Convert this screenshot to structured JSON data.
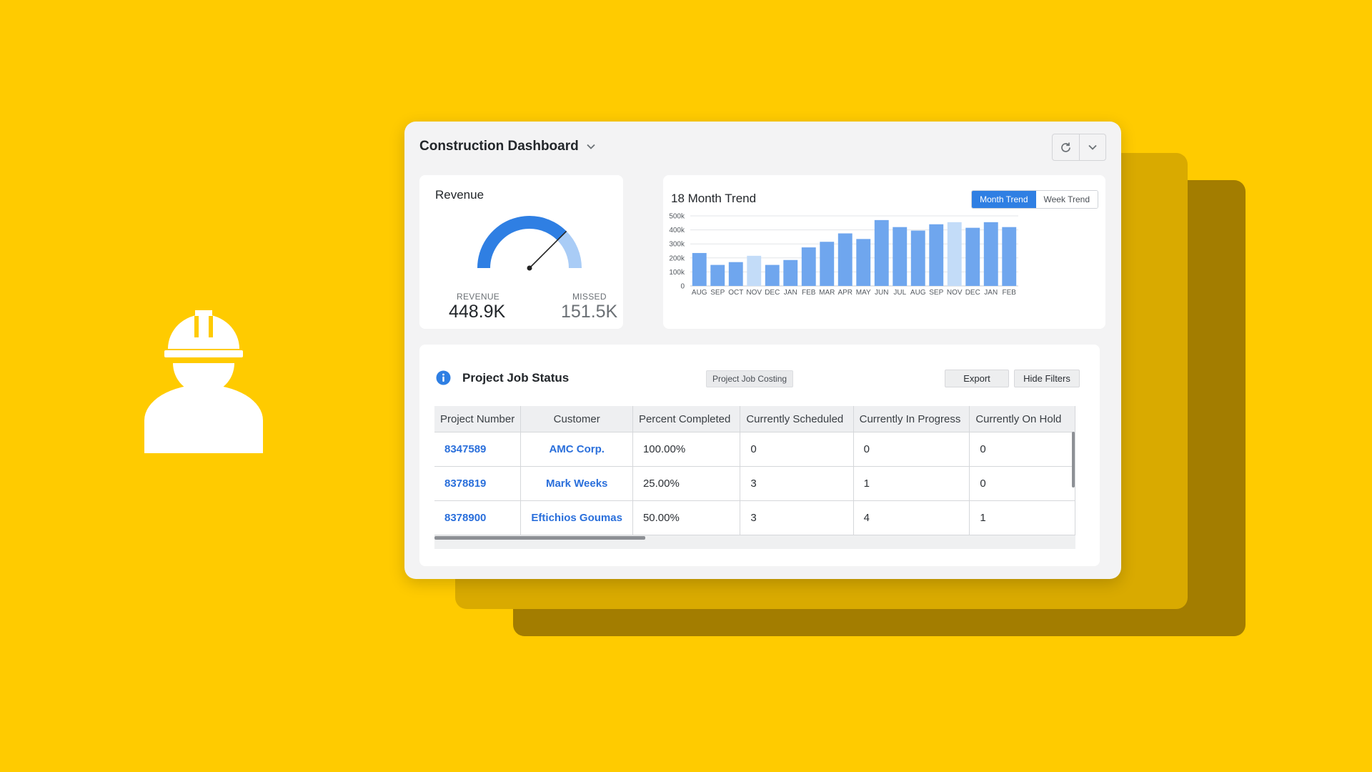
{
  "colors": {
    "background": "#FFCB00",
    "accent": "#2F7FE3",
    "bar": "#6FA6EE",
    "bar_highlight": "#C3DCF8",
    "link": "#2A6FDB"
  },
  "illustration": {
    "icon": "construction-worker-icon"
  },
  "window": {
    "title": "Construction Dashboard",
    "title_icon": "chevron-down-icon",
    "toolbar": {
      "refresh_icon": "refresh-icon",
      "menu_icon": "chevron-down-icon"
    }
  },
  "revenue": {
    "title": "Revenue",
    "gauge_fraction": 0.75,
    "revenue_label": "REVENUE",
    "revenue_value": "448.9K",
    "missed_label": "MISSED",
    "missed_value": "151.5K"
  },
  "trend": {
    "title": "18 Month Trend",
    "tabs": [
      {
        "label": "Month Trend",
        "active": true
      },
      {
        "label": "Week Trend",
        "active": false
      }
    ]
  },
  "chart_data": {
    "type": "bar",
    "title": "18 Month Trend",
    "categories": [
      "AUG",
      "SEP",
      "OCT",
      "NOV",
      "DEC",
      "JAN",
      "FEB",
      "MAR",
      "APR",
      "MAY",
      "JUN",
      "JUL",
      "AUG",
      "SEP",
      "NOV",
      "DEC",
      "JAN",
      "FEB"
    ],
    "values": [
      235,
      150,
      170,
      215,
      150,
      185,
      275,
      315,
      375,
      335,
      470,
      420,
      395,
      440,
      455,
      415,
      455,
      420
    ],
    "highlighted": [
      3,
      14
    ],
    "y_ticks": [
      "0",
      "100k",
      "200k",
      "300k",
      "400k",
      "500k"
    ],
    "ylim": [
      0,
      500
    ],
    "grid": true
  },
  "jobs": {
    "title": "Project Job Status",
    "info_icon": "info-icon",
    "filter_pill": "Project Job Costing",
    "export_label": "Export",
    "hide_filters_label": "Hide Filters",
    "columns": [
      "Project Number",
      "Customer",
      "Percent Completed",
      "Currently Scheduled",
      "Currently In Progress",
      "Currently On Hold"
    ],
    "rows": [
      [
        "8347589",
        "AMC Corp.",
        "100.00%",
        "0",
        "0",
        "0"
      ],
      [
        "8378819",
        "Mark Weeks",
        "25.00%",
        "3",
        "1",
        "0"
      ],
      [
        "8378900",
        "Eftichios Goumas",
        "50.00%",
        "3",
        "4",
        "1"
      ]
    ]
  }
}
